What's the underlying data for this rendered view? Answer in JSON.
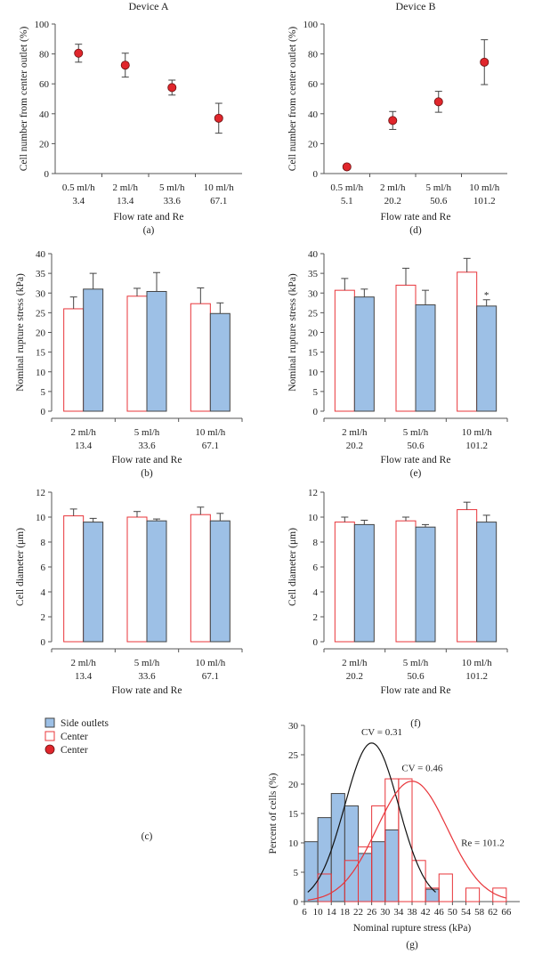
{
  "colors": {
    "side": "#9dc0e6",
    "side_stroke": "#444444",
    "center_edge": "#e8353a",
    "center_dot": "#e0262c",
    "black_curve": "#111111",
    "red_curve": "#e8353a"
  },
  "legend": {
    "items": [
      {
        "label": "Side outlets",
        "kind": "side"
      },
      {
        "label": "Center",
        "kind": "center"
      },
      {
        "label": "Center",
        "kind": "dot"
      }
    ],
    "panel_label": "(c)"
  },
  "chart_data": [
    {
      "id": "a",
      "type": "scatter",
      "title": "Device A",
      "panel": "(a)",
      "xlabel": "Flow rate and Re",
      "ylabel": "Cell number from center outlet (%)",
      "ylim": [
        0,
        100
      ],
      "yticks": [
        0,
        20,
        40,
        60,
        80,
        100
      ],
      "categories": [
        [
          "0.5 ml/h",
          "3.4"
        ],
        [
          "2 ml/h",
          "13.4"
        ],
        [
          "5 ml/h",
          "33.6"
        ],
        [
          "10 ml/h",
          "67.1"
        ]
      ],
      "series": [
        {
          "values": [
            80.5,
            72.5,
            57.5,
            37
          ],
          "err": [
            6,
            8,
            5,
            10
          ]
        }
      ]
    },
    {
      "id": "d",
      "type": "scatter",
      "title": "Device B",
      "panel": "(d)",
      "xlabel": "Flow rate and Re",
      "ylabel": "Cell number from center outlet (%)",
      "ylim": [
        0,
        100
      ],
      "yticks": [
        0,
        20,
        40,
        60,
        80,
        100
      ],
      "categories": [
        [
          "0.5 ml/h",
          "5.1"
        ],
        [
          "2 ml/h",
          "20.2"
        ],
        [
          "5 ml/h",
          "50.6"
        ],
        [
          "10 ml/h",
          "101.2"
        ]
      ],
      "series": [
        {
          "values": [
            4.5,
            35.5,
            48,
            74.5
          ],
          "err": [
            0,
            6,
            7,
            15
          ]
        }
      ]
    },
    {
      "id": "b",
      "type": "bar",
      "panel": "(b)",
      "xlabel": "Flow rate and Re",
      "ylabel": "Nominal rupture stress (kPa)",
      "ylim": [
        0,
        40
      ],
      "yticks": [
        0,
        5,
        10,
        15,
        20,
        25,
        30,
        35,
        40
      ],
      "categories": [
        [
          "2 ml/h",
          "13.4"
        ],
        [
          "5 ml/h",
          "33.6"
        ],
        [
          "10 ml/h",
          "67.1"
        ]
      ],
      "series": [
        {
          "kind": "center",
          "values": [
            26,
            29.2,
            27.3
          ],
          "err": [
            3,
            2,
            4
          ]
        },
        {
          "kind": "side",
          "values": [
            31,
            30.4,
            24.8
          ],
          "err": [
            4,
            4.8,
            2.7
          ]
        }
      ],
      "annotations": []
    },
    {
      "id": "e",
      "type": "bar",
      "panel": "(e)",
      "xlabel": "Flow rate and Re",
      "ylabel": "Nominal rupture stress (kPa)",
      "ylim": [
        0,
        40
      ],
      "yticks": [
        0,
        5,
        10,
        15,
        20,
        25,
        30,
        35,
        40
      ],
      "categories": [
        [
          "2 ml/h",
          "20.2"
        ],
        [
          "5 ml/h",
          "50.6"
        ],
        [
          "10 ml/h",
          "101.2"
        ]
      ],
      "series": [
        {
          "kind": "center",
          "values": [
            30.7,
            32,
            35.3
          ],
          "err": [
            3,
            4.3,
            3.5
          ]
        },
        {
          "kind": "side",
          "values": [
            29,
            27,
            26.7
          ],
          "err": [
            2,
            3.7,
            1.6
          ]
        }
      ],
      "annotations": [
        {
          "text": "*",
          "category": 2,
          "series": 1
        }
      ]
    },
    {
      "id": "c",
      "type": "bar",
      "xlabel": "Flow rate and Re",
      "ylabel": "Cell diameter (μm)",
      "ylim": [
        0,
        12
      ],
      "yticks": [
        0,
        2,
        4,
        6,
        8,
        10,
        12
      ],
      "categories": [
        [
          "2 ml/h",
          "13.4"
        ],
        [
          "5 ml/h",
          "33.6"
        ],
        [
          "10 ml/h",
          "67.1"
        ]
      ],
      "series": [
        {
          "kind": "center",
          "values": [
            10.1,
            10,
            10.2
          ],
          "err": [
            0.55,
            0.45,
            0.6
          ]
        },
        {
          "kind": "side",
          "values": [
            9.6,
            9.7,
            9.7
          ],
          "err": [
            0.3,
            0.15,
            0.6
          ]
        }
      ],
      "annotations": []
    },
    {
      "id": "f",
      "type": "bar",
      "panel": "(f)",
      "xlabel": "Flow rate and Re",
      "ylabel": "Cell diameter (μm)",
      "ylim": [
        0,
        12
      ],
      "yticks": [
        0,
        2,
        4,
        6,
        8,
        10,
        12
      ],
      "categories": [
        [
          "2 ml/h",
          "20.2"
        ],
        [
          "5 ml/h",
          "50.6"
        ],
        [
          "10 ml/h",
          "101.2"
        ]
      ],
      "series": [
        {
          "kind": "center",
          "values": [
            9.6,
            9.7,
            10.6
          ],
          "err": [
            0.4,
            0.3,
            0.6
          ]
        },
        {
          "kind": "side",
          "values": [
            9.4,
            9.2,
            9.6
          ],
          "err": [
            0.35,
            0.2,
            0.55
          ]
        }
      ],
      "annotations": []
    },
    {
      "id": "g",
      "type": "histogram",
      "panel": "(g)",
      "xlabel": "Nominal rupture stress (kPa)",
      "ylabel": "Percent of cells (%)",
      "xlim": [
        6,
        70
      ],
      "ylim": [
        0,
        30
      ],
      "xticks": [
        6,
        10,
        14,
        18,
        22,
        26,
        30,
        34,
        38,
        42,
        46,
        50,
        54,
        58,
        62,
        66
      ],
      "yticks": [
        0,
        5,
        10,
        15,
        20,
        25,
        30
      ],
      "bin_width": 4,
      "series": [
        {
          "kind": "side",
          "bins": [
            [
              8,
              10.2
            ],
            [
              12,
              14.3
            ],
            [
              16,
              18.4
            ],
            [
              20,
              16.3
            ],
            [
              24,
              8.2
            ],
            [
              28,
              10.2
            ],
            [
              32,
              12.2
            ],
            [
              44,
              2.1
            ]
          ]
        },
        {
          "kind": "center",
          "bins": [
            [
              12,
              4.7
            ],
            [
              20,
              7
            ],
            [
              24,
              9.3
            ],
            [
              28,
              16.3
            ],
            [
              32,
              20.9
            ],
            [
              36,
              20.9
            ],
            [
              40,
              7
            ],
            [
              44,
              2.3
            ],
            [
              48,
              4.7
            ],
            [
              56,
              2.3
            ],
            [
              64,
              2.3
            ]
          ]
        }
      ],
      "curves": [
        {
          "kind": "black",
          "mean": 26,
          "sd": 8,
          "amp": 27,
          "from": 7,
          "to": 45
        },
        {
          "kind": "red",
          "mean": 38,
          "sd": 10.5,
          "amp": 20.5,
          "from": 7,
          "to": 66
        }
      ],
      "annotations": [
        {
          "text": "CV = 0.31",
          "x": 29,
          "y": 28.3
        },
        {
          "text": "CV = 0.46",
          "x": 41,
          "y": 22.2
        },
        {
          "text": "Re = 101.2",
          "x": 59,
          "y": 9.5
        }
      ]
    }
  ]
}
